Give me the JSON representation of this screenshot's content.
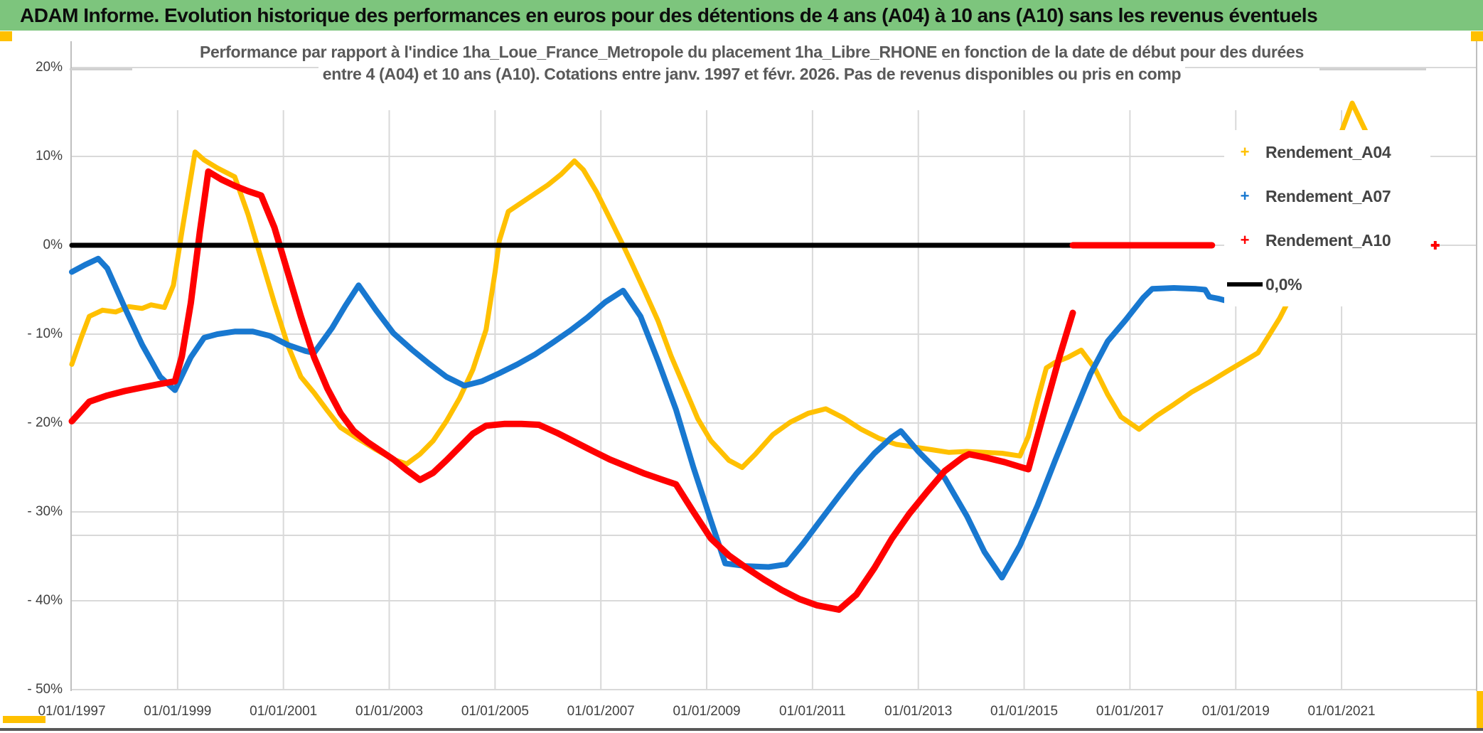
{
  "header": {
    "title": "ADAM Informe. Evolution historique des performances en euros pour des détentions de 4 ans (A04) à 10 ans (A10) sans les revenus éventuels"
  },
  "colors": {
    "titlebar_green": "#7dc57d",
    "accent_gold": "#ffc000",
    "series_a04": "#ffc000",
    "series_a07": "#1878d0",
    "series_a10": "#ff0000",
    "zero_line": "#000000",
    "gridline": "#d9d9d9",
    "border": "#bfbfbf",
    "text_gray": "#595959",
    "axis_text": "#404040",
    "bottom_bar": "#595959"
  },
  "chart_data": {
    "type": "line",
    "title_lines": [
      "Performance par rapport à l'indice 1ha_Loue_France_Metropole  du placement 1ha_Libre_RHONE en fonction de la date de début pour des durées",
      "entre 4 (A04) et 10 ans (A10). Cotations entre janv. 1997 et févr. 2026. Pas de revenus disponibles ou pris en comp"
    ],
    "x_axis": {
      "tick_years": [
        1997,
        1999,
        2001,
        2003,
        2005,
        2007,
        2009,
        2011,
        2013,
        2015,
        2017,
        2019,
        2021
      ],
      "tick_labels": [
        "01/01/1997",
        "01/01/1999",
        "01/01/2001",
        "01/01/2003",
        "01/01/2005",
        "01/01/2007",
        "01/01/2009",
        "01/01/2011",
        "01/01/2013",
        "01/01/2015",
        "01/01/2017",
        "01/01/2019",
        "01/01/2021"
      ]
    },
    "y_axis": {
      "ticks": [
        {
          "value": 20,
          "label": "20%"
        },
        {
          "value": 10,
          "label": "10%"
        },
        {
          "value": 0,
          "label": "0%"
        },
        {
          "value": -10,
          "label": "- 10%"
        },
        {
          "value": -20,
          "label": "- 20%"
        },
        {
          "value": -30,
          "label": "- 30%"
        },
        {
          "value": -40,
          "label": "- 40%"
        },
        {
          "value": -50,
          "label": "- 50%"
        }
      ],
      "range": [
        -50,
        20
      ]
    },
    "legend": [
      {
        "id": "a04",
        "label": "Rendement_A04",
        "marker": "+",
        "color": "#ffc000",
        "type": "marker"
      },
      {
        "id": "a07",
        "label": "Rendement_A07",
        "marker": "+",
        "color": "#1878d0",
        "type": "marker"
      },
      {
        "id": "a10",
        "label": "Rendement_A10",
        "marker": "+",
        "color": "#ff0000",
        "type": "marker"
      },
      {
        "id": "zero",
        "label": "0,0%",
        "marker": "line",
        "color": "#000000",
        "type": "line"
      }
    ],
    "series": [
      {
        "name": "Rendement_A04",
        "color": "#ffc000",
        "width": 7,
        "points": [
          [
            1997.0,
            -13.4
          ],
          [
            1997.17,
            -10.5
          ],
          [
            1997.33,
            -8.0
          ],
          [
            1997.58,
            -7.3
          ],
          [
            1997.83,
            -7.5
          ],
          [
            1998.08,
            -6.9
          ],
          [
            1998.33,
            -7.1
          ],
          [
            1998.5,
            -6.7
          ],
          [
            1998.75,
            -7.0
          ],
          [
            1998.92,
            -4.5
          ],
          [
            1999.08,
            1.5
          ],
          [
            1999.33,
            10.5
          ],
          [
            1999.5,
            9.6
          ],
          [
            1999.75,
            8.7
          ],
          [
            2000.08,
            7.7
          ],
          [
            2000.33,
            3.5
          ],
          [
            2000.58,
            -1.5
          ],
          [
            2000.83,
            -6.5
          ],
          [
            2001.08,
            -11.2
          ],
          [
            2001.33,
            -14.8
          ],
          [
            2001.58,
            -16.6
          ],
          [
            2001.83,
            -18.6
          ],
          [
            2002.08,
            -20.5
          ],
          [
            2002.42,
            -21.8
          ],
          [
            2002.75,
            -23.0
          ],
          [
            2003.08,
            -24.1
          ],
          [
            2003.33,
            -24.6
          ],
          [
            2003.58,
            -23.5
          ],
          [
            2003.83,
            -22.0
          ],
          [
            2004.08,
            -19.8
          ],
          [
            2004.33,
            -17.2
          ],
          [
            2004.58,
            -14.0
          ],
          [
            2004.83,
            -9.5
          ],
          [
            2005.0,
            -3.0
          ],
          [
            2005.08,
            0.5
          ],
          [
            2005.25,
            3.8
          ],
          [
            2005.5,
            4.8
          ],
          [
            2005.75,
            5.8
          ],
          [
            2006.0,
            6.8
          ],
          [
            2006.25,
            8.0
          ],
          [
            2006.5,
            9.5
          ],
          [
            2006.67,
            8.5
          ],
          [
            2006.92,
            6.0
          ],
          [
            2007.17,
            3.0
          ],
          [
            2007.42,
            0.0
          ],
          [
            2007.58,
            -2.0
          ],
          [
            2007.83,
            -5.2
          ],
          [
            2008.08,
            -8.5
          ],
          [
            2008.33,
            -12.5
          ],
          [
            2008.58,
            -16.0
          ],
          [
            2008.83,
            -19.5
          ],
          [
            2009.08,
            -22.0
          ],
          [
            2009.42,
            -24.2
          ],
          [
            2009.67,
            -25.0
          ],
          [
            2009.92,
            -23.5
          ],
          [
            2010.25,
            -21.3
          ],
          [
            2010.58,
            -19.9
          ],
          [
            2010.92,
            -18.9
          ],
          [
            2011.25,
            -18.4
          ],
          [
            2011.58,
            -19.4
          ],
          [
            2011.92,
            -20.7
          ],
          [
            2012.25,
            -21.7
          ],
          [
            2012.58,
            -22.4
          ],
          [
            2012.92,
            -22.7
          ],
          [
            2013.25,
            -23.0
          ],
          [
            2013.58,
            -23.3
          ],
          [
            2013.92,
            -23.2
          ],
          [
            2014.25,
            -23.3
          ],
          [
            2014.58,
            -23.4
          ],
          [
            2014.92,
            -23.7
          ],
          [
            2015.08,
            -21.5
          ],
          [
            2015.25,
            -17.5
          ],
          [
            2015.42,
            -13.8
          ],
          [
            2015.58,
            -13.2
          ],
          [
            2015.83,
            -12.6
          ],
          [
            2016.08,
            -11.8
          ],
          [
            2016.33,
            -13.8
          ],
          [
            2016.58,
            -16.8
          ],
          [
            2016.83,
            -19.3
          ],
          [
            2017.17,
            -20.7
          ],
          [
            2017.5,
            -19.2
          ],
          [
            2017.83,
            -17.9
          ],
          [
            2018.17,
            -16.5
          ],
          [
            2018.5,
            -15.4
          ],
          [
            2018.83,
            -14.2
          ],
          [
            2019.17,
            -13.0
          ],
          [
            2019.42,
            -12.1
          ],
          [
            2019.58,
            -10.6
          ],
          [
            2019.83,
            -8.2
          ],
          [
            2020.0,
            -6.2
          ]
        ]
      },
      {
        "name": "Rendement_A04_isolated_peak",
        "color": "#ffc000",
        "width": 7,
        "points": [
          [
            2021.0,
            12.8
          ],
          [
            2021.2,
            16.0
          ],
          [
            2021.45,
            12.9
          ]
        ]
      },
      {
        "name": "Rendement_A07",
        "color": "#1878d0",
        "width": 8,
        "points": [
          [
            1997.0,
            -3.0
          ],
          [
            1997.25,
            -2.2
          ],
          [
            1997.5,
            -1.5
          ],
          [
            1997.67,
            -2.6
          ],
          [
            1998.0,
            -7.0
          ],
          [
            1998.33,
            -11.2
          ],
          [
            1998.67,
            -14.8
          ],
          [
            1998.95,
            -16.3
          ],
          [
            1999.25,
            -12.6
          ],
          [
            1999.5,
            -10.4
          ],
          [
            1999.75,
            -10.0
          ],
          [
            2000.08,
            -9.7
          ],
          [
            2000.42,
            -9.7
          ],
          [
            2000.75,
            -10.2
          ],
          [
            2001.08,
            -11.2
          ],
          [
            2001.42,
            -11.9
          ],
          [
            2001.58,
            -12.1
          ],
          [
            2001.92,
            -9.3
          ],
          [
            2002.17,
            -6.8
          ],
          [
            2002.42,
            -4.5
          ],
          [
            2002.75,
            -7.3
          ],
          [
            2003.08,
            -9.9
          ],
          [
            2003.42,
            -11.7
          ],
          [
            2003.75,
            -13.3
          ],
          [
            2004.08,
            -14.8
          ],
          [
            2004.42,
            -15.8
          ],
          [
            2004.75,
            -15.3
          ],
          [
            2005.08,
            -14.4
          ],
          [
            2005.42,
            -13.4
          ],
          [
            2005.75,
            -12.3
          ],
          [
            2006.08,
            -11.0
          ],
          [
            2006.42,
            -9.6
          ],
          [
            2006.75,
            -8.1
          ],
          [
            2007.08,
            -6.4
          ],
          [
            2007.42,
            -5.1
          ],
          [
            2007.75,
            -8.0
          ],
          [
            2008.08,
            -13.0
          ],
          [
            2008.42,
            -18.5
          ],
          [
            2008.75,
            -25.0
          ],
          [
            2009.08,
            -31.0
          ],
          [
            2009.35,
            -35.8
          ],
          [
            2009.75,
            -36.1
          ],
          [
            2010.17,
            -36.2
          ],
          [
            2010.5,
            -35.9
          ],
          [
            2010.83,
            -33.5
          ],
          [
            2011.17,
            -30.8
          ],
          [
            2011.5,
            -28.2
          ],
          [
            2011.83,
            -25.7
          ],
          [
            2012.17,
            -23.4
          ],
          [
            2012.5,
            -21.6
          ],
          [
            2012.67,
            -20.9
          ],
          [
            2013.0,
            -23.2
          ],
          [
            2013.5,
            -26.2
          ],
          [
            2013.92,
            -30.5
          ],
          [
            2014.25,
            -34.5
          ],
          [
            2014.58,
            -37.4
          ],
          [
            2014.92,
            -33.8
          ],
          [
            2015.25,
            -29.3
          ],
          [
            2015.58,
            -24.3
          ],
          [
            2015.92,
            -19.3
          ],
          [
            2016.25,
            -14.5
          ],
          [
            2016.58,
            -10.8
          ],
          [
            2016.92,
            -8.4
          ],
          [
            2017.25,
            -5.9
          ],
          [
            2017.42,
            -4.9
          ],
          [
            2017.83,
            -4.8
          ],
          [
            2018.25,
            -4.9
          ],
          [
            2018.42,
            -5.0
          ],
          [
            2018.5,
            -5.8
          ],
          [
            2018.67,
            -6.0
          ],
          [
            2018.92,
            -6.4
          ]
        ]
      },
      {
        "name": "Rendement_A10",
        "color": "#ff0000",
        "width": 9,
        "points": [
          [
            1997.0,
            -19.8
          ],
          [
            1997.33,
            -17.6
          ],
          [
            1997.67,
            -16.9
          ],
          [
            1998.0,
            -16.4
          ],
          [
            1998.33,
            -16.0
          ],
          [
            1998.67,
            -15.6
          ],
          [
            1998.95,
            -15.3
          ],
          [
            1999.08,
            -12.5
          ],
          [
            1999.25,
            -6.5
          ],
          [
            1999.42,
            1.5
          ],
          [
            1999.58,
            8.3
          ],
          [
            1999.83,
            7.4
          ],
          [
            2000.08,
            6.7
          ],
          [
            2000.33,
            6.1
          ],
          [
            2000.58,
            5.6
          ],
          [
            2000.83,
            2.0
          ],
          [
            2001.08,
            -3.0
          ],
          [
            2001.33,
            -8.0
          ],
          [
            2001.58,
            -12.6
          ],
          [
            2001.83,
            -16.1
          ],
          [
            2002.08,
            -18.9
          ],
          [
            2002.33,
            -20.9
          ],
          [
            2002.58,
            -22.1
          ],
          [
            2002.83,
            -23.1
          ],
          [
            2003.08,
            -24.1
          ],
          [
            2003.33,
            -25.3
          ],
          [
            2003.58,
            -26.4
          ],
          [
            2003.83,
            -25.6
          ],
          [
            2004.08,
            -24.2
          ],
          [
            2004.33,
            -22.7
          ],
          [
            2004.58,
            -21.2
          ],
          [
            2004.83,
            -20.3
          ],
          [
            2005.17,
            -20.1
          ],
          [
            2005.5,
            -20.1
          ],
          [
            2005.83,
            -20.2
          ],
          [
            2006.17,
            -21.1
          ],
          [
            2006.5,
            -22.1
          ],
          [
            2006.83,
            -23.1
          ],
          [
            2007.17,
            -24.1
          ],
          [
            2007.5,
            -24.9
          ],
          [
            2007.83,
            -25.7
          ],
          [
            2008.17,
            -26.4
          ],
          [
            2008.42,
            -26.9
          ],
          [
            2008.75,
            -30.0
          ],
          [
            2009.08,
            -33.0
          ],
          [
            2009.42,
            -34.9
          ],
          [
            2009.75,
            -36.3
          ],
          [
            2010.08,
            -37.6
          ],
          [
            2010.42,
            -38.8
          ],
          [
            2010.75,
            -39.8
          ],
          [
            2011.08,
            -40.5
          ],
          [
            2011.5,
            -41.0
          ],
          [
            2011.83,
            -39.3
          ],
          [
            2012.17,
            -36.3
          ],
          [
            2012.5,
            -33.0
          ],
          [
            2012.83,
            -30.2
          ],
          [
            2013.17,
            -27.7
          ],
          [
            2013.5,
            -25.4
          ],
          [
            2013.83,
            -23.9
          ],
          [
            2013.96,
            -23.5
          ],
          [
            2014.29,
            -23.9
          ],
          [
            2014.63,
            -24.4
          ],
          [
            2014.96,
            -25.0
          ],
          [
            2015.08,
            -25.2
          ],
          [
            2015.25,
            -21.5
          ],
          [
            2015.46,
            -17.0
          ],
          [
            2015.67,
            -12.5
          ],
          [
            2015.92,
            -7.6
          ]
        ]
      },
      {
        "name": "Zero_reference_black",
        "color": "#000000",
        "width": 7,
        "points": [
          [
            1997.0,
            0
          ],
          [
            2015.92,
            0
          ]
        ]
      },
      {
        "name": "Rendement_A10_zero_segment",
        "color": "#ff0000",
        "width": 9,
        "points": [
          [
            2015.92,
            0
          ],
          [
            2018.55,
            0
          ]
        ]
      }
    ],
    "isolated_markers": [
      {
        "name": "a10-right-edge-marker",
        "color": "#ff0000",
        "x_year": 2022.77,
        "value": 0
      }
    ]
  }
}
